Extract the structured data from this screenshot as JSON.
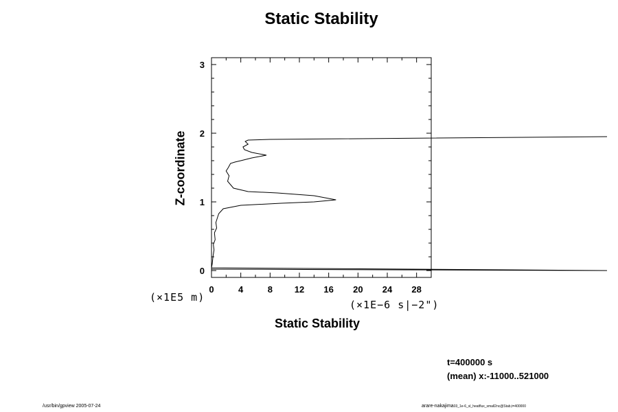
{
  "chart_data": {
    "type": "line",
    "title": "Static Stability",
    "xlabel": "Static Stability",
    "ylabel": "Z-coordinate",
    "x_unit_label": "(×1E−6 s|−2\")",
    "y_unit_label": "(×1E5 m)",
    "xlim": [
      0,
      30
    ],
    "ylim": [
      -0.1,
      3.1
    ],
    "x_ticks": [
      "0",
      "4",
      "8",
      "12",
      "16",
      "20",
      "24",
      "28"
    ],
    "y_ticks": [
      "0",
      "1",
      "2",
      "3"
    ],
    "series": [
      {
        "x": [
          0,
          54,
          0,
          0.1,
          0.2,
          0.35,
          0.25,
          0.5,
          0.4,
          0.7,
          0.6,
          0.9,
          1.0,
          1.6,
          4,
          9.5,
          14,
          16,
          17,
          14,
          9,
          5,
          3,
          2.2,
          2.4,
          2.0,
          2.3,
          2.6,
          3.2,
          4,
          5.5,
          7.5,
          5.5,
          4.5,
          4.3,
          5.0,
          4.6,
          5.0,
          8.0,
          54
        ],
        "y": [
          0.02,
          0.0,
          0.04,
          0.1,
          0.2,
          0.3,
          0.38,
          0.45,
          0.55,
          0.62,
          0.7,
          0.8,
          0.83,
          0.9,
          0.95,
          0.98,
          1.0,
          1.02,
          1.03,
          1.09,
          1.13,
          1.15,
          1.2,
          1.3,
          1.38,
          1.45,
          1.5,
          1.56,
          1.58,
          1.6,
          1.64,
          1.68,
          1.72,
          1.76,
          1.8,
          1.84,
          1.88,
          1.9,
          1.91,
          1.95
        ]
      }
    ]
  },
  "info": {
    "time": "t=400000 s",
    "mean": "(mean) x:-11000..521000"
  },
  "footer": {
    "left": "/usr/bin/gpview 2005-07-24",
    "right_main": "arare-nakajima",
    "right_small": "03_1e-6_sl_heatflux_small2nc@Stab,t=400000"
  }
}
